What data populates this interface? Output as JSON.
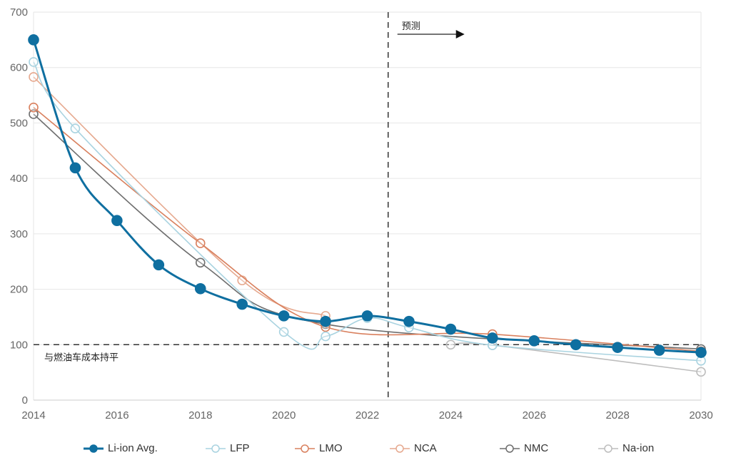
{
  "chart_data": {
    "type": "line",
    "title": "",
    "xlabel": "",
    "ylabel": "",
    "xlim": [
      2014,
      2030
    ],
    "ylim": [
      0,
      700
    ],
    "x_ticks": [
      "2014",
      "2016",
      "2018",
      "2020",
      "2022",
      "2024",
      "2026",
      "2028",
      "2030"
    ],
    "y_ticks": [
      "0",
      "100",
      "200",
      "300",
      "400",
      "500",
      "600",
      "700"
    ],
    "grid": true,
    "legend_position": "bottom",
    "annotations": {
      "forecast_label": "预测",
      "forecast_start": 2022.5,
      "parity_label": "与燃油车成本持平",
      "parity_value": 100
    },
    "series": [
      {
        "name": "Li-ion Avg.",
        "color": "#0f6fa0",
        "filled": true,
        "points": [
          [
            2014,
            650
          ],
          [
            2015,
            419
          ],
          [
            2016,
            324
          ],
          [
            2017,
            244
          ],
          [
            2018,
            201
          ],
          [
            2019,
            173
          ],
          [
            2020,
            152
          ],
          [
            2021,
            142
          ],
          [
            2022,
            152
          ],
          [
            2023,
            142
          ],
          [
            2024,
            128
          ],
          [
            2025,
            112
          ],
          [
            2026,
            107
          ],
          [
            2027,
            100
          ],
          [
            2028,
            95
          ],
          [
            2029,
            90
          ],
          [
            2030,
            86
          ]
        ]
      },
      {
        "name": "LFP",
        "color": "#a9d3e0",
        "filled": false,
        "points": [
          [
            2014,
            610
          ],
          [
            2015,
            490
          ],
          [
            2020,
            123
          ],
          [
            2021,
            115
          ],
          [
            2022,
            148
          ],
          [
            2023,
            131
          ],
          [
            2025,
            99
          ],
          [
            2030,
            71
          ]
        ]
      },
      {
        "name": "LMO",
        "color": "#d9805e",
        "filled": false,
        "points": [
          [
            2014,
            528
          ],
          [
            2018,
            283
          ],
          [
            2021,
            132
          ],
          [
            2025,
            119
          ],
          [
            2030,
            88
          ]
        ]
      },
      {
        "name": "NCA",
        "color": "#e6a98f",
        "filled": false,
        "points": [
          [
            2014,
            583
          ],
          [
            2019,
            216
          ],
          [
            2021,
            152
          ]
        ]
      },
      {
        "name": "NMC",
        "color": "#6e6e6e",
        "filled": false,
        "points": [
          [
            2014,
            516
          ],
          [
            2018,
            248
          ],
          [
            2021,
            137
          ],
          [
            2030,
            92
          ]
        ]
      },
      {
        "name": "Na-ion",
        "color": "#bdbdbd",
        "filled": false,
        "points": [
          [
            2024,
            100
          ],
          [
            2025,
            99
          ],
          [
            2030,
            51
          ]
        ]
      }
    ]
  }
}
